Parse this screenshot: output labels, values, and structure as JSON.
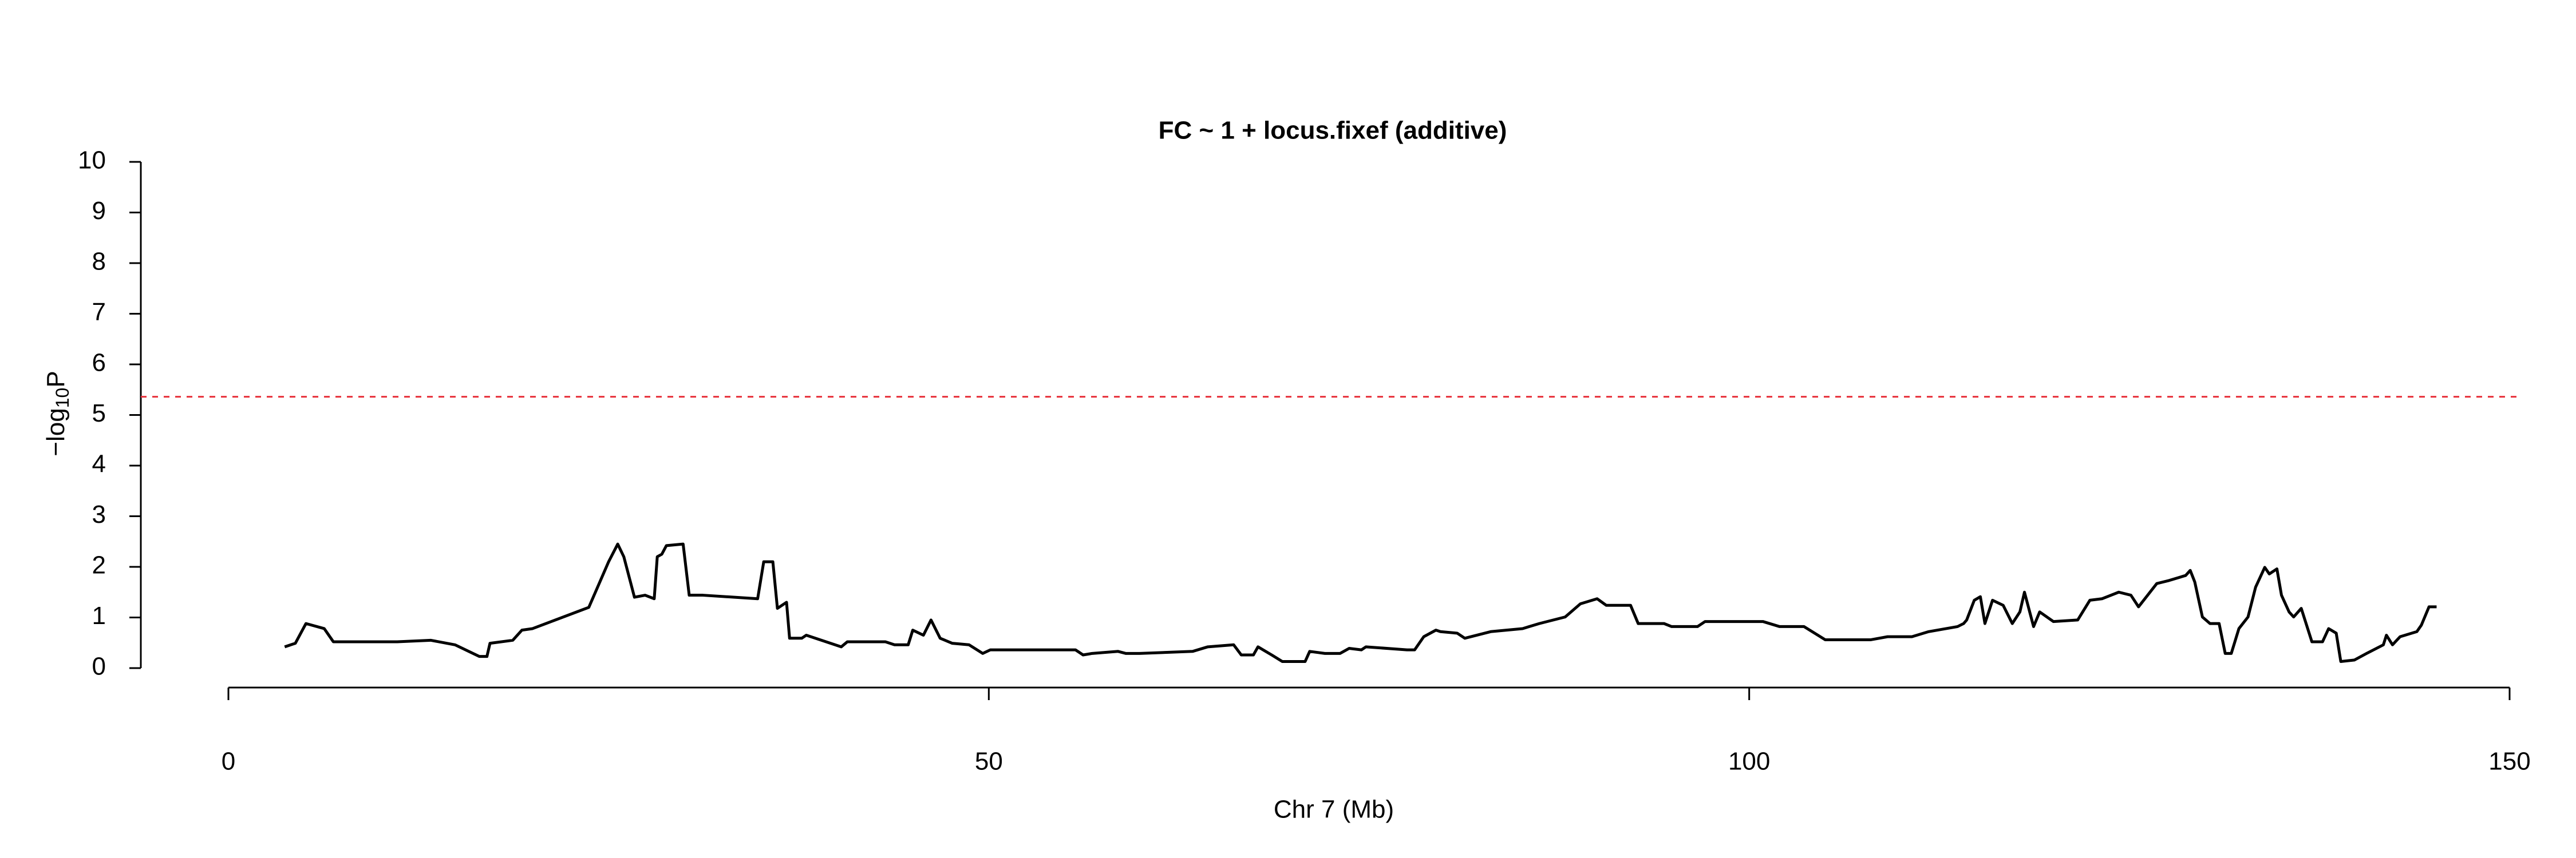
{
  "chart_data": {
    "type": "line",
    "title": "FC ~ 1 + locus.fixef (additive)",
    "xlabel": "Chr 7 (Mb)",
    "ylabel": {
      "prefix": "−log",
      "subscript": "10",
      "suffix": "P"
    },
    "x": [
      3.7,
      4.4,
      5.1,
      6.3,
      6.9,
      11.1,
      13.3,
      14.9,
      16.5,
      17.0,
      17.2,
      18.7,
      19.3,
      20.0,
      23.7,
      25.0,
      25.6,
      26.0,
      26.7,
      27.4,
      28.0,
      28.2,
      28.5,
      28.8,
      29.9,
      30.3,
      31.2,
      34.8,
      35.2,
      35.8,
      36.1,
      36.7,
      36.9,
      37.7,
      38.0,
      40.3,
      40.7,
      43.2,
      43.8,
      44.7,
      45.0,
      45.7,
      46.2,
      46.8,
      47.6,
      48.7,
      49.6,
      50.1,
      55.7,
      56.2,
      56.8,
      58.5,
      59.0,
      59.9,
      63.4,
      64.4,
      66.1,
      66.6,
      67.4,
      67.7,
      68.6,
      69.3,
      70.8,
      71.1,
      72.1,
      73.1,
      73.7,
      74.5,
      74.8,
      77.5,
      78.0,
      78.6,
      79.4,
      79.7,
      80.8,
      81.3,
      83.0,
      85.1,
      86.2,
      87.9,
      88.9,
      90.0,
      90.6,
      92.2,
      92.7,
      94.4,
      94.9,
      96.6,
      97.1,
      100.9,
      102.0,
      103.6,
      105.0,
      108.0,
      109.1,
      110.7,
      111.8,
      113.7,
      114.1,
      114.3,
      114.8,
      115.2,
      115.5,
      116.0,
      116.7,
      117.3,
      117.8,
      118.1,
      118.7,
      119.1,
      120.0,
      121.6,
      122.4,
      123.2,
      124.3,
      125.1,
      125.6,
      126.2,
      126.8,
      127.6,
      128.7,
      129.0,
      129.3,
      129.8,
      130.3,
      130.9,
      131.3,
      131.7,
      132.2,
      132.8,
      133.3,
      133.9,
      134.2,
      134.7,
      135.0,
      135.5,
      135.8,
      136.3,
      137.0,
      137.7,
      138.1,
      138.6,
      138.9,
      139.8,
      140.6,
      141.7,
      141.9,
      142.3,
      142.8,
      143.9,
      144.2,
      144.7,
      145.2
    ],
    "series": [
      {
        "color": "#000000",
        "values": [
          0.42,
          0.49,
          0.88,
          0.78,
          0.52,
          0.52,
          0.55,
          0.46,
          0.23,
          0.23,
          0.49,
          0.55,
          0.75,
          0.78,
          1.2,
          2.1,
          2.45,
          2.2,
          1.4,
          1.44,
          1.37,
          2.2,
          2.25,
          2.42,
          2.45,
          1.44,
          1.44,
          1.37,
          2.1,
          2.1,
          1.18,
          1.3,
          0.59,
          0.59,
          0.65,
          0.42,
          0.52,
          0.52,
          0.46,
          0.46,
          0.75,
          0.65,
          0.95,
          0.59,
          0.49,
          0.46,
          0.29,
          0.36,
          0.36,
          0.26,
          0.29,
          0.33,
          0.29,
          0.29,
          0.33,
          0.42,
          0.46,
          0.26,
          0.26,
          0.42,
          0.26,
          0.13,
          0.13,
          0.33,
          0.29,
          0.29,
          0.39,
          0.36,
          0.42,
          0.36,
          0.36,
          0.62,
          0.75,
          0.72,
          0.69,
          0.59,
          0.72,
          0.78,
          0.88,
          1.01,
          1.27,
          1.37,
          1.24,
          1.24,
          0.88,
          0.88,
          0.82,
          0.82,
          0.92,
          0.92,
          0.82,
          0.82,
          0.56,
          0.56,
          0.62,
          0.62,
          0.72,
          0.82,
          0.88,
          0.95,
          1.34,
          1.41,
          0.88,
          1.34,
          1.24,
          0.88,
          1.11,
          1.5,
          0.82,
          1.11,
          0.92,
          0.95,
          1.34,
          1.37,
          1.5,
          1.44,
          1.21,
          1.44,
          1.67,
          1.73,
          1.83,
          1.93,
          1.7,
          1.01,
          0.88,
          0.88,
          0.29,
          0.29,
          0.78,
          1.01,
          1.6,
          1.99,
          1.86,
          1.96,
          1.44,
          1.11,
          1.01,
          1.18,
          0.52,
          0.52,
          0.78,
          0.69,
          0.13,
          0.16,
          0.29,
          0.46,
          0.65,
          0.46,
          0.62,
          0.72,
          0.85,
          1.21,
          1.21
        ]
      }
    ],
    "threshold": 5.36,
    "threshold_color": "#e8303a",
    "xlim": [
      0,
      150
    ],
    "xticks": [
      0,
      50,
      100,
      150
    ],
    "ylim": [
      0,
      10
    ],
    "yticks": [
      0,
      1,
      2,
      3,
      4,
      5,
      6,
      7,
      8,
      9,
      10
    ]
  }
}
